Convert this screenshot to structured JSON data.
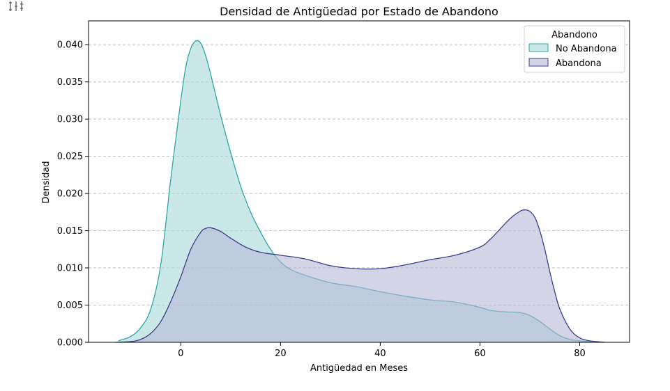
{
  "chart_data": {
    "type": "area",
    "title": "Densidad de Antigüedad por Estado de Abandono",
    "xlabel": "Antigüedad en Meses",
    "ylabel": "Densidad",
    "xlim": [
      -18.5,
      90
    ],
    "ylim": [
      0,
      0.0432
    ],
    "xticks": [
      0,
      20,
      40,
      60,
      80
    ],
    "yticks": [
      0.0,
      0.005,
      0.01,
      0.015,
      0.02,
      0.025,
      0.03,
      0.035,
      0.04
    ],
    "ytick_labels": [
      "0.000",
      "0.005",
      "0.010",
      "0.015",
      "0.020",
      "0.025",
      "0.030",
      "0.035",
      "0.040"
    ],
    "xtick_labels": [
      "0",
      "20",
      "40",
      "60",
      "80"
    ],
    "grid": "y-dashed",
    "legend": {
      "title": "Abandono",
      "placement": "top-right"
    },
    "series": [
      {
        "name": "No Abandona",
        "line_color": "#2ea5a5",
        "fill_color": "#a9d9da",
        "x": [
          -12.5,
          -10,
          -8,
          -6,
          -4,
          -2,
          0,
          1,
          2,
          3,
          4,
          5,
          6,
          8,
          10,
          12,
          14,
          16,
          18,
          20,
          22,
          25,
          30,
          35,
          40,
          45,
          50,
          55,
          60,
          62,
          65,
          68,
          70,
          72,
          74,
          76,
          78,
          80,
          82,
          84.5
        ],
        "y": [
          0.0002,
          0.0008,
          0.002,
          0.0045,
          0.0105,
          0.022,
          0.0325,
          0.037,
          0.0395,
          0.0405,
          0.0402,
          0.0385,
          0.036,
          0.0305,
          0.0255,
          0.021,
          0.0175,
          0.0148,
          0.0125,
          0.0108,
          0.0098,
          0.009,
          0.008,
          0.0075,
          0.0068,
          0.0062,
          0.0057,
          0.0054,
          0.0047,
          0.0043,
          0.0041,
          0.004,
          0.0036,
          0.0028,
          0.0018,
          0.0009,
          0.0004,
          0.0002,
          0.0001,
          0.0
        ]
      },
      {
        "name": "Abandona",
        "line_color": "#3b3f86",
        "fill_color": "#b7b7d7",
        "x": [
          -13,
          -10,
          -8,
          -6,
          -4,
          -2,
          0,
          2,
          4,
          5,
          6,
          8,
          10,
          13,
          16,
          20,
          25,
          30,
          35,
          40,
          45,
          50,
          55,
          60,
          62,
          64,
          66,
          68,
          69,
          70,
          71,
          72,
          73,
          74,
          75,
          76,
          78,
          80,
          82,
          85
        ],
        "y": [
          0.0,
          0.0001,
          0.0004,
          0.0012,
          0.0028,
          0.0055,
          0.0088,
          0.0125,
          0.0148,
          0.0153,
          0.0154,
          0.0149,
          0.014,
          0.0128,
          0.0121,
          0.0117,
          0.0112,
          0.0103,
          0.0099,
          0.0099,
          0.0104,
          0.0111,
          0.0117,
          0.0128,
          0.0138,
          0.0152,
          0.0166,
          0.0176,
          0.0178,
          0.0176,
          0.0168,
          0.015,
          0.0125,
          0.0095,
          0.0068,
          0.0045,
          0.0018,
          0.0006,
          0.0002,
          0.0
        ]
      }
    ]
  }
}
